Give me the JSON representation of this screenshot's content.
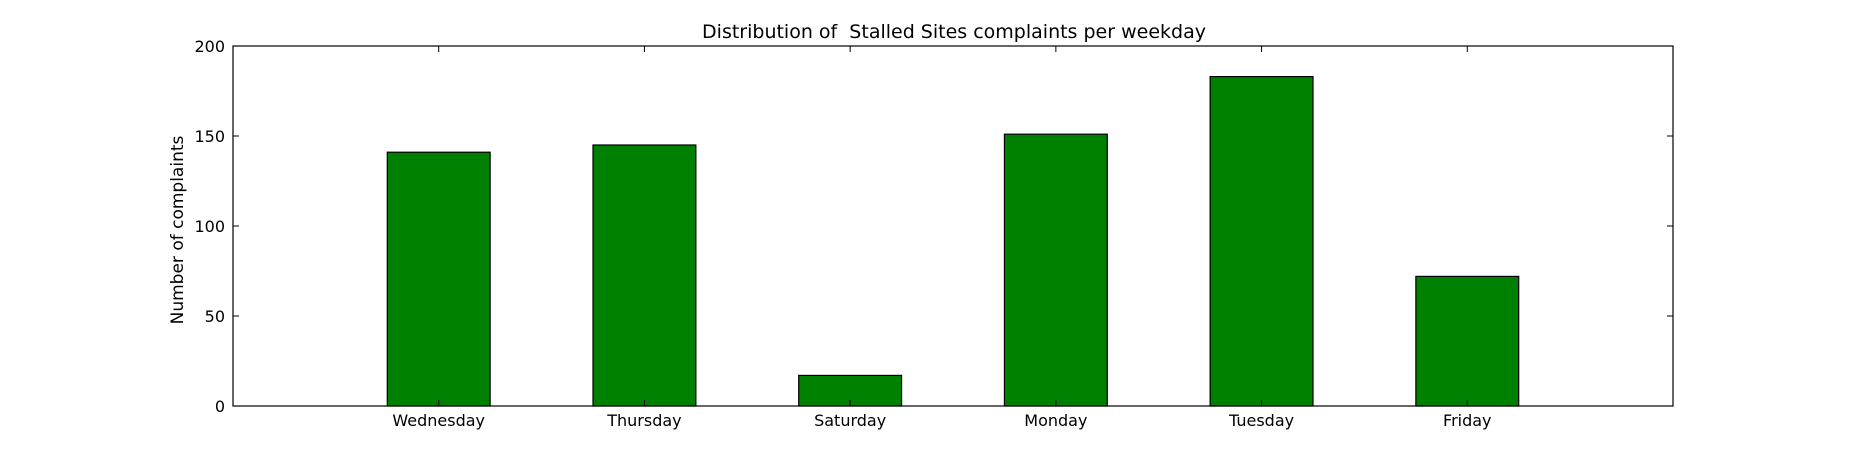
{
  "chart_data": {
    "type": "bar",
    "title": "Distribution of  Stalled Sites complaints per weekday",
    "xlabel": "",
    "ylabel": "Number of complaints",
    "categories": [
      "Wednesday",
      "Thursday",
      "Saturday",
      "Monday",
      "Tuesday",
      "Friday"
    ],
    "values": [
      141,
      145,
      17,
      151,
      183,
      72
    ],
    "ylim": [
      0,
      200
    ],
    "yticks": [
      0,
      50,
      100,
      150,
      200
    ],
    "grid": false,
    "bar_color": "#008000",
    "edge_color": "#000000"
  }
}
